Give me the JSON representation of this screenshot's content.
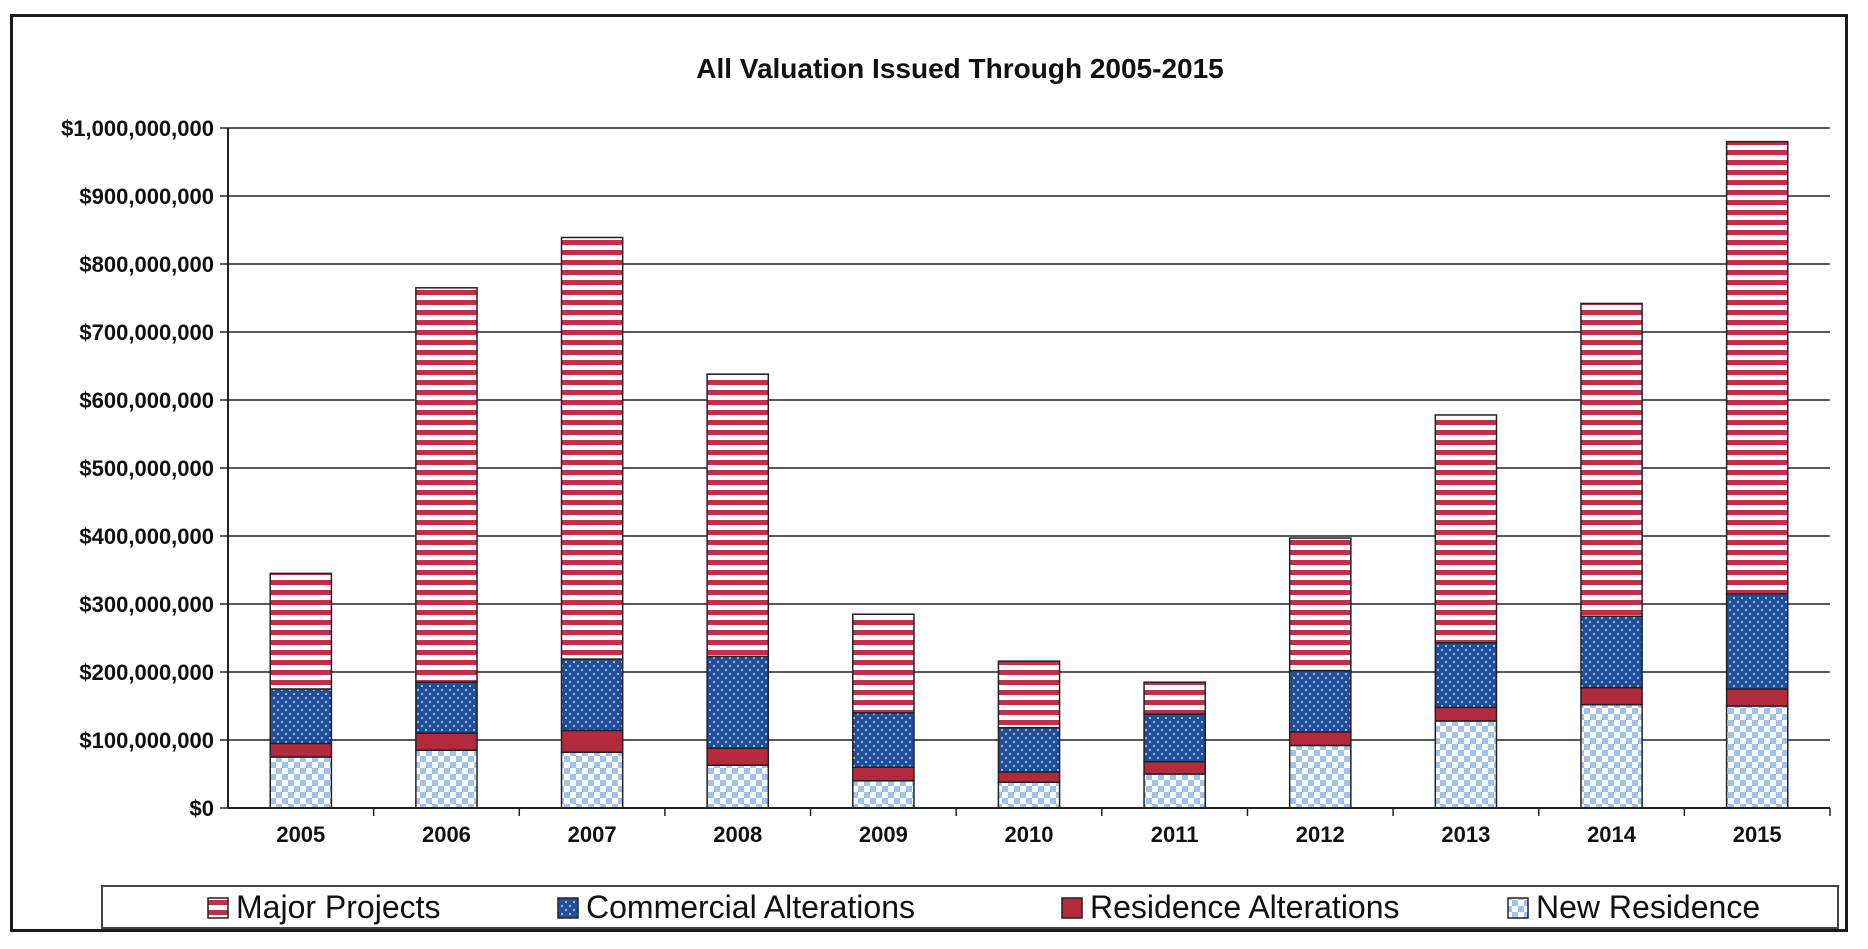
{
  "colors": {
    "major_projects": "#c0304a",
    "commercial_alterations": "#1f4e9a",
    "residence_alterations": "#b22a3c",
    "new_residence": "#9fc3ee"
  },
  "chart_data": {
    "type": "bar",
    "stacked": true,
    "title": "All Valuation Issued Through 2005-2015",
    "xlabel": "",
    "ylabel": "",
    "ylim": [
      0,
      1000000000
    ],
    "yticks": [
      0,
      100000000,
      200000000,
      300000000,
      400000000,
      500000000,
      600000000,
      700000000,
      800000000,
      900000000,
      1000000000
    ],
    "ytick_labels": [
      "$0",
      "$100,000,000",
      "$200,000,000",
      "$300,000,000",
      "$400,000,000",
      "$500,000,000",
      "$600,000,000",
      "$700,000,000",
      "$800,000,000",
      "$900,000,000",
      "$1,000,000,000"
    ],
    "categories": [
      "2005",
      "2006",
      "2007",
      "2008",
      "2009",
      "2010",
      "2011",
      "2012",
      "2013",
      "2014",
      "2015"
    ],
    "grid": true,
    "legend_position": "bottom",
    "series": [
      {
        "name": "New Residence",
        "pattern": "checker",
        "values": [
          75000000,
          85000000,
          82000000,
          63000000,
          40000000,
          38000000,
          50000000,
          92000000,
          128000000,
          152000000,
          150000000
        ]
      },
      {
        "name": "Residence Alterations",
        "pattern": "solid",
        "values": [
          20000000,
          25000000,
          32000000,
          25000000,
          20000000,
          15000000,
          18000000,
          20000000,
          20000000,
          25000000,
          25000000
        ]
      },
      {
        "name": "Commercial Alterations",
        "pattern": "dots",
        "values": [
          80000000,
          75000000,
          105000000,
          135000000,
          80000000,
          65000000,
          70000000,
          90000000,
          95000000,
          105000000,
          140000000
        ]
      },
      {
        "name": "Major Projects",
        "pattern": "stripes",
        "values": [
          170000000,
          580000000,
          620000000,
          415000000,
          145000000,
          98000000,
          47000000,
          195000000,
          335000000,
          460000000,
          665000000
        ]
      }
    ],
    "legend_order": [
      "Major Projects",
      "Commercial Alterations",
      "Residence Alterations",
      "New Residence"
    ]
  }
}
